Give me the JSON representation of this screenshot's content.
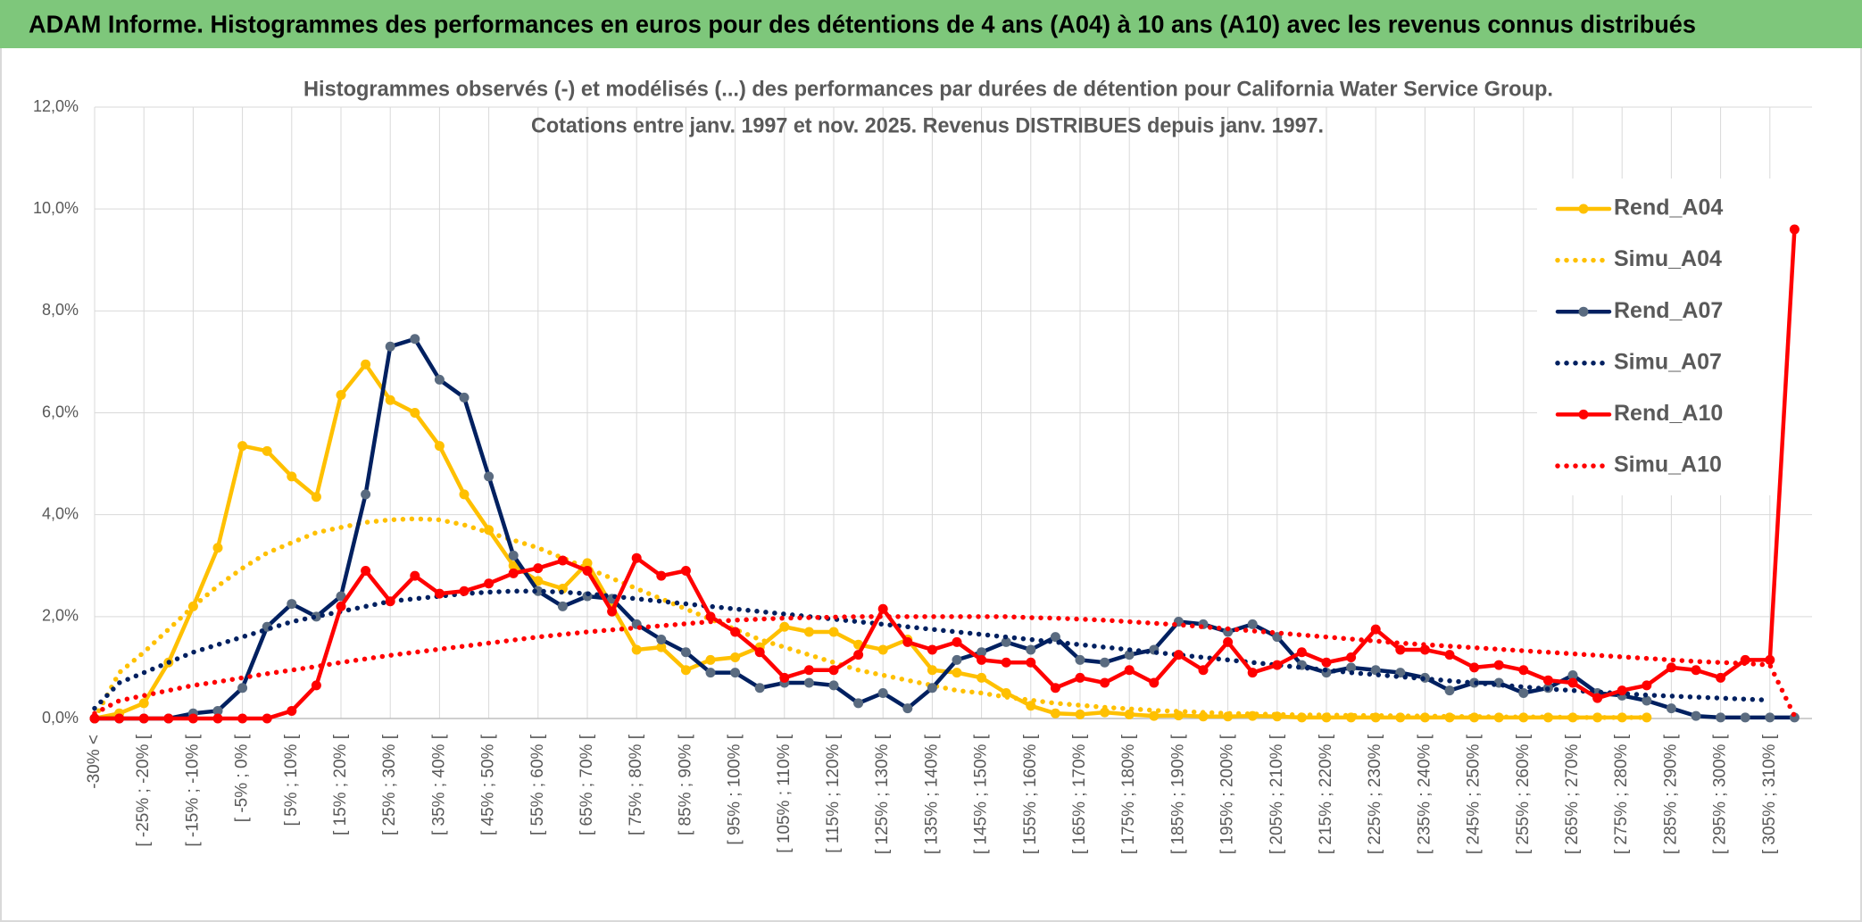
{
  "chart_data": {
    "type": "line",
    "title": "ADAM Informe. Histogrammes des performances en euros pour des détentions de 4 ans (A04) à 10 ans (A10) avec les revenus connus distribués",
    "subtitle": [
      "Histogrammes observés (-) et modélisés (...) des performances par durées de détention pour California Water Service Group.",
      "Cotations entre janv. 1997 et nov. 2025. Revenus DISTRIBUES depuis janv. 1997."
    ],
    "categories": [
      "-30% <",
      null,
      "[ -25% ; -20% [",
      null,
      "[ -15% ; -10% [",
      null,
      "[ -5% ; 0% [",
      null,
      "[ 5% ; 10% [",
      null,
      "[ 15% ; 20% [",
      null,
      "[ 25% ; 30% [",
      null,
      "[ 35% ; 40% [",
      null,
      "[ 45% ; 50% [",
      null,
      "[ 55% ; 60% [",
      null,
      "[ 65% ; 70% [",
      null,
      "[ 75% ; 80% [",
      null,
      "[ 85% ; 90% [",
      null,
      "[ 95% ; 100% [",
      null,
      "[ 105% ; 110% [",
      null,
      "[ 115% ; 120% [",
      null,
      "[ 125% ; 130% [",
      null,
      "[ 135% ; 140% [",
      null,
      "[ 145% ; 150% [",
      null,
      "[ 155% ; 160% [",
      null,
      "[ 165% ; 170% [",
      null,
      "[ 175% ; 180% [",
      null,
      "[ 185% ; 190% [",
      null,
      "[ 195% ; 200% [",
      null,
      "[ 205% ; 210% [",
      null,
      "[ 215% ; 220% [",
      null,
      "[ 225% ; 230% [",
      null,
      "[ 235% ; 240% [",
      null,
      "[ 245% ; 250% [",
      null,
      "[ 255% ; 260% [",
      null,
      "[ 265% ; 270% [",
      null,
      "[ 275% ; 280% [",
      null,
      "[ 285% ; 290% [",
      null,
      "[ 295% ; 300% [",
      null,
      "[ 305% ; 310% [",
      null
    ],
    "ylim": [
      0,
      12
    ],
    "yticks": [
      {
        "value": 0,
        "label": "0,0%"
      },
      {
        "value": 2,
        "label": "2,0%"
      },
      {
        "value": 4,
        "label": "4,0%"
      },
      {
        "value": 6,
        "label": "6,0%"
      },
      {
        "value": 8,
        "label": "8,0%"
      },
      {
        "value": 10,
        "label": "10,0%"
      },
      {
        "value": 12,
        "label": "12,0%"
      }
    ],
    "grid": true,
    "legend": "right",
    "series": [
      {
        "name": "Rend_A04",
        "color": "#ffc000",
        "style": "solid",
        "marker": "#ffc000",
        "values": [
          0,
          0.1,
          0.3,
          1.1,
          2.2,
          3.35,
          5.35,
          5.25,
          4.75,
          4.35,
          6.35,
          6.95,
          6.25,
          6.0,
          5.35,
          4.4,
          3.7,
          3.0,
          2.7,
          2.55,
          3.05,
          2.2,
          1.35,
          1.4,
          0.95,
          1.15,
          1.2,
          1.4,
          1.8,
          1.7,
          1.7,
          1.45,
          1.35,
          1.55,
          0.95,
          0.9,
          0.8,
          0.5,
          0.25,
          0.1,
          0.08,
          0.12,
          0.08,
          0.05,
          0.06,
          0.04,
          0.04,
          0.05,
          0.04,
          0.02,
          0.02,
          0.02,
          0.02,
          0.02,
          0.02,
          0.02,
          0.02,
          0.02,
          0.02,
          0.02,
          0.02,
          0.02,
          0.02,
          0.02,
          null,
          null,
          null,
          null,
          null,
          null
        ]
      },
      {
        "name": "Simu_A04",
        "color": "#ffc000",
        "style": "dotted",
        "values": [
          0,
          0.9,
          1.3,
          1.75,
          2.2,
          2.6,
          2.95,
          3.25,
          3.45,
          3.65,
          3.75,
          3.85,
          3.9,
          3.92,
          3.9,
          3.8,
          3.65,
          3.5,
          3.35,
          3.15,
          2.95,
          2.75,
          2.55,
          2.35,
          2.15,
          1.95,
          1.75,
          1.55,
          1.4,
          1.25,
          1.1,
          0.95,
          0.85,
          0.75,
          0.65,
          0.55,
          0.5,
          0.42,
          0.36,
          0.3,
          0.26,
          0.22,
          0.19,
          0.16,
          0.14,
          0.12,
          0.1,
          0.09,
          0.08,
          0.07,
          0.07,
          0.06,
          0.06,
          0.05,
          0.05,
          0.04,
          0.04,
          0.03,
          0.03,
          0.03,
          0.02,
          0.02,
          0.02,
          0.02,
          null,
          null,
          null,
          null,
          null,
          null
        ]
      },
      {
        "name": "Rend_A07",
        "color": "#002060",
        "style": "solid",
        "marker": "#5a6b80",
        "values": [
          0,
          0,
          0,
          0,
          0.1,
          0.15,
          0.6,
          1.8,
          2.25,
          2.0,
          2.4,
          4.4,
          7.3,
          7.45,
          6.65,
          6.3,
          4.75,
          3.2,
          2.5,
          2.2,
          2.4,
          2.35,
          1.85,
          1.55,
          1.3,
          0.9,
          0.9,
          0.6,
          0.7,
          0.7,
          0.65,
          0.3,
          0.5,
          0.2,
          0.6,
          1.15,
          1.3,
          1.5,
          1.35,
          1.6,
          1.15,
          1.1,
          1.25,
          1.35,
          1.9,
          1.85,
          1.7,
          1.85,
          1.6,
          1.05,
          0.9,
          1.0,
          0.95,
          0.9,
          0.8,
          0.55,
          0.7,
          0.7,
          0.5,
          0.6,
          0.85,
          0.5,
          0.45,
          0.35,
          0.2,
          0.05,
          0.02,
          0.02,
          0.02,
          0.02
        ]
      },
      {
        "name": "Simu_A07",
        "color": "#002060",
        "style": "dotted",
        "values": [
          0.2,
          0.7,
          0.9,
          1.1,
          1.3,
          1.45,
          1.6,
          1.75,
          1.9,
          2.0,
          2.1,
          2.2,
          2.3,
          2.35,
          2.4,
          2.45,
          2.48,
          2.5,
          2.5,
          2.48,
          2.45,
          2.4,
          2.35,
          2.3,
          2.25,
          2.2,
          2.15,
          2.1,
          2.05,
          2.0,
          1.95,
          1.9,
          1.85,
          1.8,
          1.75,
          1.7,
          1.65,
          1.6,
          1.55,
          1.5,
          1.45,
          1.4,
          1.35,
          1.3,
          1.25,
          1.2,
          1.15,
          1.1,
          1.05,
          1.0,
          0.95,
          0.9,
          0.86,
          0.82,
          0.78,
          0.74,
          0.7,
          0.66,
          0.62,
          0.58,
          0.55,
          0.52,
          0.49,
          0.46,
          0.44,
          0.42,
          0.4,
          0.38,
          0.36,
          null
        ]
      },
      {
        "name": "Rend_A10",
        "color": "#ff0000",
        "style": "solid",
        "marker": "#ff0000",
        "values": [
          0,
          0,
          0,
          0,
          0,
          0,
          0,
          0,
          0.15,
          0.65,
          2.2,
          2.9,
          2.3,
          2.8,
          2.45,
          2.5,
          2.65,
          2.85,
          2.95,
          3.1,
          2.9,
          2.1,
          3.15,
          2.8,
          2.9,
          2.0,
          1.7,
          1.3,
          0.8,
          0.95,
          0.95,
          1.25,
          2.15,
          1.5,
          1.35,
          1.5,
          1.15,
          1.1,
          1.1,
          0.6,
          0.8,
          0.7,
          0.95,
          0.7,
          1.25,
          0.95,
          1.5,
          0.9,
          1.05,
          1.3,
          1.1,
          1.2,
          1.75,
          1.35,
          1.35,
          1.25,
          1.0,
          1.05,
          0.95,
          0.75,
          0.7,
          0.4,
          0.55,
          0.65,
          1.0,
          0.95,
          0.8,
          1.15,
          1.15,
          9.6
        ]
      },
      {
        "name": "Simu_A10",
        "color": "#ff0000",
        "style": "dotted",
        "values": [
          0.1,
          0.35,
          0.45,
          0.55,
          0.65,
          0.72,
          0.8,
          0.88,
          0.95,
          1.02,
          1.1,
          1.17,
          1.24,
          1.3,
          1.36,
          1.42,
          1.48,
          1.54,
          1.6,
          1.65,
          1.7,
          1.74,
          1.78,
          1.82,
          1.86,
          1.9,
          1.93,
          1.95,
          1.97,
          1.98,
          1.99,
          2.0,
          2.0,
          2.0,
          2.0,
          2.0,
          2.0,
          2.0,
          1.98,
          1.97,
          1.95,
          1.93,
          1.9,
          1.87,
          1.84,
          1.8,
          1.76,
          1.72,
          1.68,
          1.64,
          1.6,
          1.56,
          1.52,
          1.48,
          1.45,
          1.42,
          1.39,
          1.36,
          1.33,
          1.3,
          1.27,
          1.24,
          1.21,
          1.18,
          1.15,
          1.12,
          1.1,
          1.08,
          1.05,
          0.05
        ]
      }
    ]
  }
}
